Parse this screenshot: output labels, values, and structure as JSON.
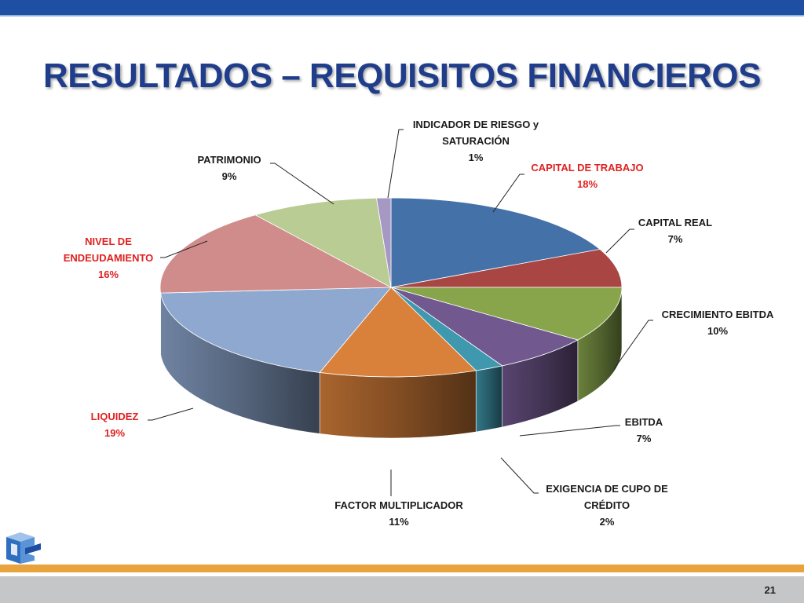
{
  "slide": {
    "title": "RESULTADOS – REQUISITOS FINANCIEROS",
    "page_number": "21"
  },
  "colors": {
    "header_bar": "#1f4fa3",
    "title": "#1f3d8a",
    "footer_orange": "#e8a33c",
    "footer_gray": "#c5c6c8",
    "highlight_label": "#e02020",
    "normal_label": "#1a1a1a"
  },
  "chart_data": {
    "type": "pie",
    "style": "3d",
    "title": "",
    "slices": [
      {
        "label": "CAPITAL DE TRABAJO",
        "label_lines": [
          "CAPITAL DE TRABAJO"
        ],
        "value": 18,
        "pct": "18%",
        "color": "#4471a8",
        "highlight": true
      },
      {
        "label": "CAPITAL REAL",
        "label_lines": [
          "CAPITAL REAL"
        ],
        "value": 7,
        "pct": "7%",
        "color": "#a94644",
        "highlight": false
      },
      {
        "label": "CRECIMIENTO EBITDA",
        "label_lines": [
          "CRECIMIENTO EBITDA"
        ],
        "value": 10,
        "pct": "10%",
        "color": "#88a54c",
        "highlight": false
      },
      {
        "label": "EBITDA",
        "label_lines": [
          "EBITDA"
        ],
        "value": 7,
        "pct": "7%",
        "color": "#71588f",
        "highlight": false
      },
      {
        "label": "EXIGENCIA DE CUPO DE CRÉDITO",
        "label_lines": [
          "EXIGENCIA DE CUPO DE",
          "CRÉDITO"
        ],
        "value": 2,
        "pct": "2%",
        "color": "#4098ae",
        "highlight": false
      },
      {
        "label": "FACTOR MULTIPLICADOR",
        "label_lines": [
          "FACTOR MULTIPLICADOR"
        ],
        "value": 11,
        "pct": "11%",
        "color": "#d9813b",
        "highlight": false
      },
      {
        "label": "LIQUIDEZ",
        "label_lines": [
          "LIQUIDEZ"
        ],
        "value": 19,
        "pct": "19%",
        "color": "#8ea8d0",
        "highlight": true
      },
      {
        "label": "NIVEL DE ENDEUDAMIENTO",
        "label_lines": [
          "NIVEL DE",
          "ENDEUDAMIENTO"
        ],
        "value": 16,
        "pct": "16%",
        "color": "#d08c8b",
        "highlight": true
      },
      {
        "label": "PATRIMONIO",
        "label_lines": [
          "PATRIMONIO"
        ],
        "value": 9,
        "pct": "9%",
        "color": "#b8cc93",
        "highlight": false
      },
      {
        "label": "INDICADOR DE RIESGO y SATURACIÓN",
        "label_lines": [
          "INDICADOR DE RIESGO y",
          "SATURACIÓN"
        ],
        "value": 1,
        "pct": "1%",
        "color": "#a598c2",
        "highlight": false
      }
    ]
  }
}
